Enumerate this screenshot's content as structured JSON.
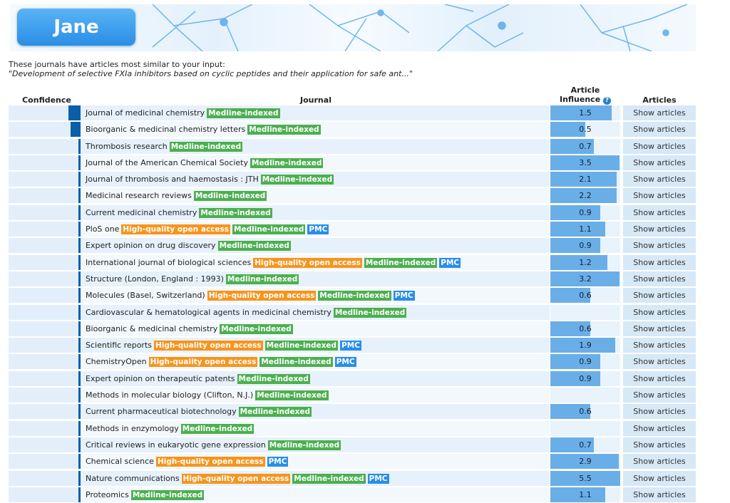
{
  "logo_text": "Jane",
  "intro": {
    "line1": "These journals have articles most similar to your input:",
    "query": "\"Development of selective FXIa inhibitors based on cyclic peptides and their application for safe ant...\""
  },
  "headers": {
    "confidence": "Confidence",
    "journal": "Journal",
    "influence_1": "Article",
    "influence_2": "Influence",
    "help": "?",
    "articles": "Articles"
  },
  "show_label": "Show articles",
  "badge_labels": {
    "med": "Medline-indexed",
    "oa": "High-quality open access",
    "pmc": "PMC"
  },
  "colors": {
    "medline": "#4caf50",
    "open_access": "#f7941d",
    "pmc": "#2a8ee6",
    "confidence": "#0b5ea8",
    "influence": "#6aaee8"
  },
  "rows": [
    {
      "name": "Journal of medicinal chemistry",
      "badges": [
        "med"
      ],
      "confidence": 1.0,
      "influence": "1.5"
    },
    {
      "name": "Bioorganic & medicinal chemistry letters",
      "badges": [
        "med"
      ],
      "confidence": 0.82,
      "influence": "0.5"
    },
    {
      "name": "Thrombosis research",
      "badges": [
        "med"
      ],
      "confidence": 0.18,
      "influence": "0.7"
    },
    {
      "name": "Journal of the American Chemical Society",
      "badges": [
        "med"
      ],
      "confidence": 0.18,
      "influence": "3.5"
    },
    {
      "name": "Journal of thrombosis and haemostasis : JTH",
      "badges": [
        "med"
      ],
      "confidence": 0.18,
      "influence": "2.1"
    },
    {
      "name": "Medicinal research reviews",
      "badges": [
        "med"
      ],
      "confidence": 0.18,
      "influence": "2.2"
    },
    {
      "name": "Current medicinal chemistry",
      "badges": [
        "med"
      ],
      "confidence": 0.18,
      "influence": "0.9"
    },
    {
      "name": "PloS one",
      "badges": [
        "oa",
        "med",
        "pmc"
      ],
      "confidence": 0.18,
      "influence": "1.1"
    },
    {
      "name": "Expert opinion on drug discovery",
      "badges": [
        "med"
      ],
      "confidence": 0.18,
      "influence": "0.9"
    },
    {
      "name": "International journal of biological sciences",
      "badges": [
        "oa",
        "med",
        "pmc"
      ],
      "confidence": 0.18,
      "influence": "1.2"
    },
    {
      "name": "Structure (London, England : 1993)",
      "badges": [
        "med"
      ],
      "confidence": 0.18,
      "influence": "3.2"
    },
    {
      "name": "Molecules (Basel, Switzerland)",
      "badges": [
        "oa",
        "med",
        "pmc"
      ],
      "confidence": 0.18,
      "influence": "0.6"
    },
    {
      "name": "Cardiovascular & hematological agents in medicinal chemistry",
      "badges": [
        "med"
      ],
      "confidence": 0.18,
      "influence": ""
    },
    {
      "name": "Bioorganic & medicinal chemistry",
      "badges": [
        "med"
      ],
      "confidence": 0.18,
      "influence": "0.6"
    },
    {
      "name": "Scientific reports",
      "badges": [
        "oa",
        "med",
        "pmc"
      ],
      "confidence": 0.18,
      "influence": "1.9"
    },
    {
      "name": "ChemistryOpen",
      "badges": [
        "oa",
        "med",
        "pmc"
      ],
      "confidence": 0.18,
      "influence": "0.9"
    },
    {
      "name": "Expert opinion on therapeutic patents",
      "badges": [
        "med"
      ],
      "confidence": 0.18,
      "influence": "0.9"
    },
    {
      "name": "Methods in molecular biology (Clifton, N.J.)",
      "badges": [
        "med"
      ],
      "confidence": 0.18,
      "influence": ""
    },
    {
      "name": "Current pharmaceutical biotechnology",
      "badges": [
        "med"
      ],
      "confidence": 0.18,
      "influence": "0.6"
    },
    {
      "name": "Methods in enzymology",
      "badges": [
        "med"
      ],
      "confidence": 0.18,
      "influence": ""
    },
    {
      "name": "Critical reviews in eukaryotic gene expression",
      "badges": [
        "med"
      ],
      "confidence": 0.18,
      "influence": "0.7"
    },
    {
      "name": "Chemical science",
      "badges": [
        "oa",
        "pmc"
      ],
      "confidence": 0.18,
      "influence": "2.9"
    },
    {
      "name": "Nature communications",
      "badges": [
        "oa",
        "med",
        "pmc"
      ],
      "confidence": 0.18,
      "influence": "5.5"
    },
    {
      "name": "Proteomics",
      "badges": [
        "med"
      ],
      "confidence": 0.18,
      "influence": "1.1"
    }
  ]
}
